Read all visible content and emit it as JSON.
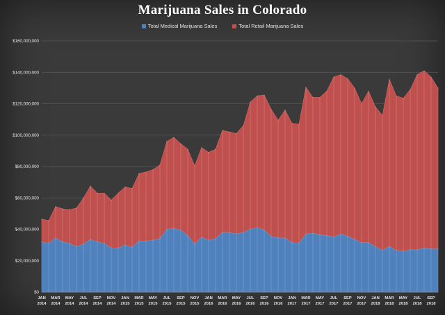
{
  "chart_data": {
    "type": "area",
    "title": "Marijuana Sales in Colorado",
    "stacked": true,
    "grid": true,
    "legend_position": "top",
    "ylim": [
      0,
      160000000
    ],
    "y_ticks": [
      0,
      20000000,
      40000000,
      60000000,
      80000000,
      100000000,
      120000000,
      140000000,
      160000000
    ],
    "y_tick_labels": [
      "$0",
      "$20,000,000",
      "$40,000,000",
      "$60,000,000",
      "$80,000,000",
      "$100,000,000",
      "$120,000,000",
      "$140,000,000",
      "$160,000,000"
    ],
    "x": [
      "JAN 2014",
      "FEB 2014",
      "MAR 2014",
      "APR 2014",
      "MAY 2014",
      "JUN 2014",
      "JUL 2014",
      "AUG 2014",
      "SEP 2014",
      "OCT 2014",
      "NOV 2014",
      "DEC 2014",
      "JAN 2015",
      "FEB 2015",
      "MAR 2015",
      "APR 2015",
      "MAY 2015",
      "JUN 2015",
      "JUL 2015",
      "AUG 2015",
      "SEP 2015",
      "OCT 2015",
      "NOV 2015",
      "DEC 2015",
      "JAN 2016",
      "FEB 2016",
      "MAR 2016",
      "APR 2016",
      "MAY 2016",
      "JUN 2016",
      "JUL 2016",
      "AUG 2016",
      "SEP 2016",
      "OCT 2016",
      "NOV 2016",
      "DEC 2016",
      "JAN 2017",
      "FEB 2017",
      "MAR 2017",
      "APR 2017",
      "MAY 2017",
      "JUN 2017",
      "JUL 2017",
      "AUG 2017",
      "SEP 2017",
      "OCT 2017",
      "NOV 2017",
      "DEC 2017",
      "JAN 2018",
      "FEB 2018",
      "MAR 2018",
      "APR 2018",
      "MAY 2018",
      "JUN 2018",
      "JUL 2018",
      "AUG 2018",
      "SEP 2018",
      "OCT 2018"
    ],
    "x_tick_labels": [
      {
        "index": 0,
        "month": "JAN",
        "year": "2014"
      },
      {
        "index": 2,
        "month": "MAR",
        "year": "2014"
      },
      {
        "index": 4,
        "month": "MAY",
        "year": "2014"
      },
      {
        "index": 6,
        "month": "JUL",
        "year": "2014"
      },
      {
        "index": 8,
        "month": "SEP",
        "year": "2014"
      },
      {
        "index": 10,
        "month": "NOV",
        "year": "2014"
      },
      {
        "index": 12,
        "month": "JAN",
        "year": "2015"
      },
      {
        "index": 14,
        "month": "MAR",
        "year": "2015"
      },
      {
        "index": 16,
        "month": "MAY",
        "year": "2015"
      },
      {
        "index": 18,
        "month": "JUL",
        "year": "2015"
      },
      {
        "index": 20,
        "month": "SEP",
        "year": "2015"
      },
      {
        "index": 22,
        "month": "NOV",
        "year": "2015"
      },
      {
        "index": 24,
        "month": "JAN",
        "year": "2016"
      },
      {
        "index": 26,
        "month": "MAR",
        "year": "2016"
      },
      {
        "index": 28,
        "month": "MAY",
        "year": "2016"
      },
      {
        "index": 30,
        "month": "JUL",
        "year": "2016"
      },
      {
        "index": 32,
        "month": "SEP",
        "year": "2016"
      },
      {
        "index": 34,
        "month": "NOV",
        "year": "2016"
      },
      {
        "index": 36,
        "month": "JAN",
        "year": "2017"
      },
      {
        "index": 38,
        "month": "MAR",
        "year": "2017"
      },
      {
        "index": 40,
        "month": "MAY",
        "year": "2017"
      },
      {
        "index": 42,
        "month": "JUL",
        "year": "2017"
      },
      {
        "index": 44,
        "month": "SEP",
        "year": "2017"
      },
      {
        "index": 46,
        "month": "NOV",
        "year": "2017"
      },
      {
        "index": 48,
        "month": "JAN",
        "year": "2018"
      },
      {
        "index": 50,
        "month": "MAR",
        "year": "2018"
      },
      {
        "index": 52,
        "month": "MAY",
        "year": "2018"
      },
      {
        "index": 54,
        "month": "JUL",
        "year": "2018"
      },
      {
        "index": 56,
        "month": "SEP",
        "year": "2018"
      }
    ],
    "series": [
      {
        "name": "Total Medical Marijuana Sales",
        "color": "#4f81bd",
        "values": [
          32000000,
          31000000,
          34500000,
          32000000,
          31000000,
          29000000,
          30500000,
          33500000,
          32000000,
          31000000,
          28000000,
          28000000,
          30000000,
          28500000,
          32500000,
          32500000,
          33000000,
          34000000,
          40000000,
          40500000,
          39500000,
          36000000,
          30500000,
          35000000,
          33000000,
          34000000,
          38000000,
          38000000,
          37000000,
          38000000,
          40000000,
          41000000,
          39500000,
          35500000,
          34500000,
          34500000,
          31500000,
          31000000,
          37000000,
          37500000,
          36500000,
          36000000,
          35000000,
          37000000,
          35500000,
          33500000,
          31500000,
          31500000,
          29000000,
          26500000,
          29000000,
          26500000,
          26000000,
          27000000,
          27000000,
          28000000,
          27500000,
          27500000
        ]
      },
      {
        "name": "Total Retail Marijuana Sales",
        "color": "#c0504d",
        "values": [
          14500000,
          14500000,
          20000000,
          21000000,
          21500000,
          24500000,
          29500000,
          34000000,
          31000000,
          32000000,
          30500000,
          35000000,
          37000000,
          37500000,
          43000000,
          44000000,
          45000000,
          47000000,
          56000000,
          58000000,
          55000000,
          55000000,
          50000000,
          57000000,
          56000000,
          57000000,
          65000000,
          64000000,
          64000000,
          68000000,
          81000000,
          84000000,
          86000000,
          81000000,
          75000000,
          81500000,
          76000000,
          76000000,
          93500000,
          86500000,
          87500000,
          92000000,
          102000000,
          101500000,
          100500000,
          96500000,
          88500000,
          96500000,
          89000000,
          86000000,
          106500000,
          98500000,
          97500000,
          102000000,
          111500000,
          113000000,
          109500000,
          102500000
        ]
      }
    ]
  }
}
